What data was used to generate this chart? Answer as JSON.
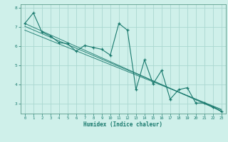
{
  "xlabel": "Humidex (Indice chaleur)",
  "bg_color": "#cff0ea",
  "grid_color": "#aad8d0",
  "line_color": "#1a7a6e",
  "spine_color": "#5a9a8a",
  "xlim": [
    -0.5,
    23.5
  ],
  "ylim": [
    2.5,
    8.2
  ],
  "yticks": [
    3,
    4,
    5,
    6,
    7,
    8
  ],
  "xticks": [
    0,
    1,
    2,
    3,
    4,
    5,
    6,
    7,
    8,
    9,
    10,
    11,
    12,
    13,
    14,
    15,
    16,
    17,
    18,
    19,
    20,
    21,
    22,
    23
  ],
  "series": [
    [
      0,
      7.2
    ],
    [
      1,
      7.75
    ],
    [
      2,
      6.75
    ],
    [
      3,
      6.55
    ],
    [
      4,
      6.2
    ],
    [
      5,
      6.15
    ],
    [
      6,
      5.75
    ],
    [
      7,
      6.05
    ],
    [
      8,
      5.95
    ],
    [
      9,
      5.85
    ],
    [
      10,
      5.55
    ],
    [
      11,
      7.2
    ],
    [
      12,
      6.85
    ],
    [
      13,
      3.75
    ],
    [
      14,
      5.3
    ],
    [
      15,
      4.05
    ],
    [
      16,
      4.75
    ],
    [
      17,
      3.25
    ],
    [
      18,
      3.75
    ],
    [
      19,
      3.85
    ],
    [
      20,
      3.05
    ],
    [
      21,
      3.05
    ],
    [
      22,
      2.85
    ],
    [
      23,
      2.6
    ]
  ],
  "trend_series": [
    [
      [
        0,
        7.2
      ],
      [
        23,
        2.62
      ]
    ],
    [
      [
        0,
        7.05
      ],
      [
        23,
        2.68
      ]
    ],
    [
      [
        0,
        6.85
      ],
      [
        23,
        2.72
      ]
    ]
  ]
}
